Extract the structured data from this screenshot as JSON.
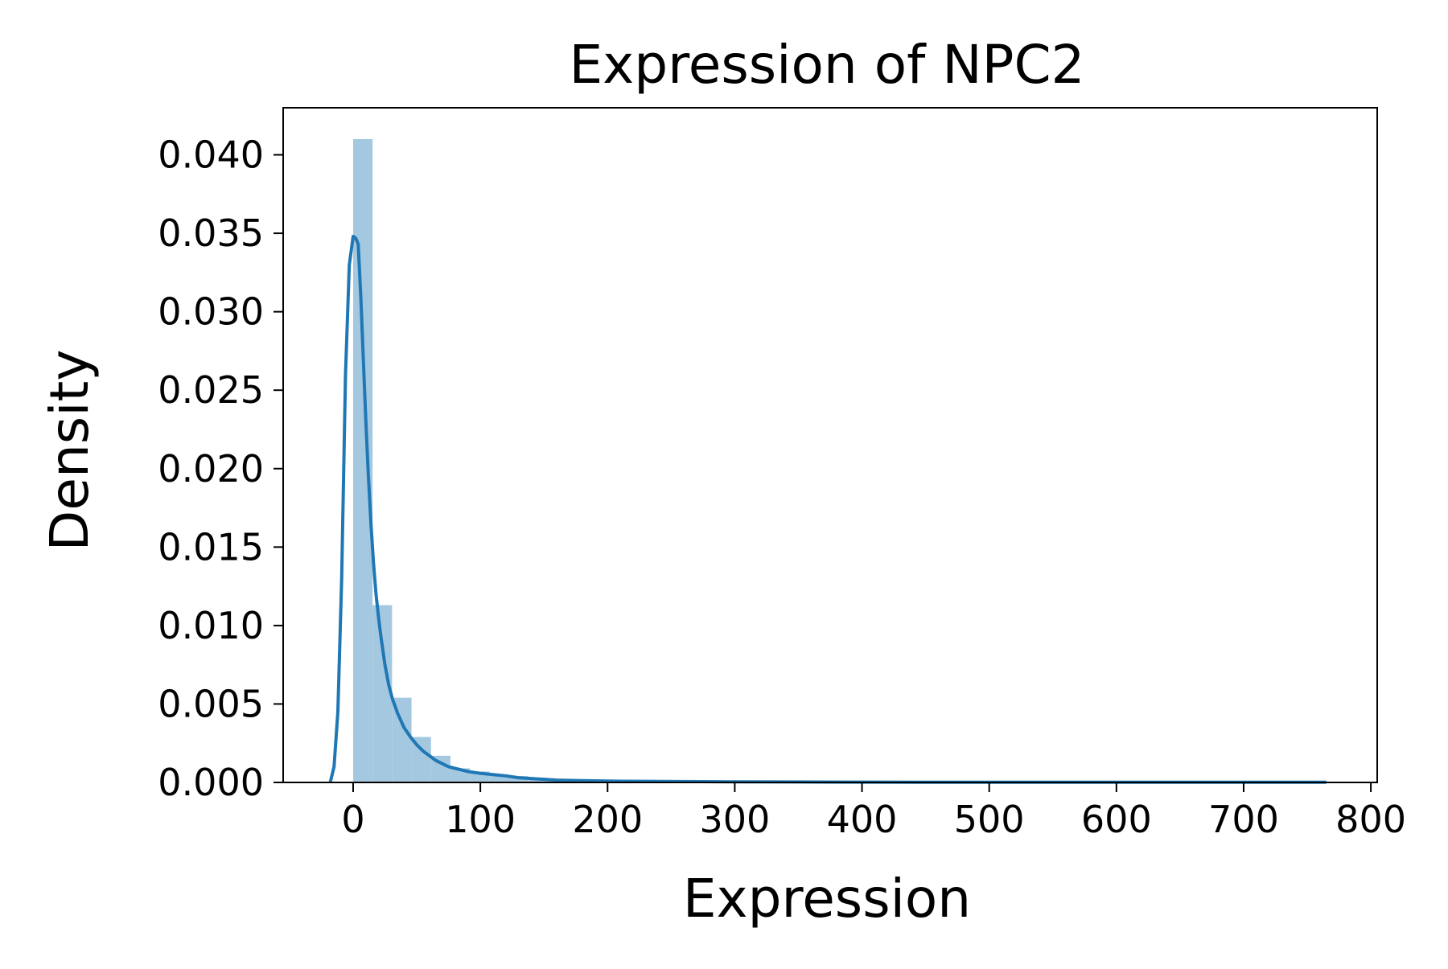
{
  "chart_data": {
    "type": "bar",
    "title": "Expression of NPC2",
    "xlabel": "Expression",
    "ylabel": "Density",
    "xlim": [
      -55,
      805
    ],
    "ylim": [
      0,
      0.043
    ],
    "xticks": [
      0,
      100,
      200,
      300,
      400,
      500,
      600,
      700,
      800
    ],
    "xtick_labels": [
      "0",
      "100",
      "200",
      "300",
      "400",
      "500",
      "600",
      "700",
      "800"
    ],
    "yticks": [
      0,
      0.005,
      0.01,
      0.015,
      0.02,
      0.025,
      0.03,
      0.035,
      0.04
    ],
    "ytick_labels": [
      "0.000",
      "0.005",
      "0.010",
      "0.015",
      "0.020",
      "0.025",
      "0.030",
      "0.035",
      "0.040"
    ],
    "grid": false,
    "legend": "none",
    "colors": {
      "histogram": "#a5c8e1",
      "kde": "#1f77b4",
      "axes": "#000000"
    },
    "histogram": {
      "bin_edges": [
        0,
        15.3,
        30.6,
        45.9,
        61.2,
        76.5,
        91.8,
        107.1,
        122.4,
        137.7,
        153,
        168.3,
        183.6,
        198.9,
        214.2,
        229.5,
        244.8,
        260.1,
        275.4,
        290.7,
        306,
        321.3,
        336.6,
        351.9,
        367.2,
        382.5,
        397.8,
        413.1,
        428.4,
        443.7,
        459,
        474.3,
        489.6,
        504.9,
        520.2,
        535.5,
        550.8,
        566.1,
        581.4,
        596.7,
        612,
        627.3,
        642.6,
        657.9,
        673.2,
        688.5,
        703.8,
        719.1,
        734.4,
        749.7,
        765
      ],
      "values": [
        0.041,
        0.0113,
        0.0054,
        0.0029,
        0.0017,
        0.0009,
        0.0007,
        0.0005,
        0.0004,
        0.0003,
        0.0002,
        0.0002,
        0.00015,
        0.0001,
        0.0001,
        0.0001,
        8e-05,
        6e-05,
        5e-05,
        4e-05,
        4e-05,
        3e-05,
        3e-05,
        2e-05,
        2e-05,
        2e-05,
        2e-05,
        1e-05,
        1e-05,
        1e-05,
        1e-05,
        1e-05,
        1e-05,
        1e-05,
        1e-05,
        1e-05,
        1e-05,
        1e-05,
        1e-05,
        1e-05,
        1e-05,
        1e-05,
        1e-05,
        1e-05,
        1e-05,
        1e-05,
        1e-05,
        1e-05,
        1e-05,
        1e-05
      ]
    },
    "kde": {
      "x": [
        -18,
        -15,
        -12,
        -9,
        -6,
        -3,
        0,
        2,
        4,
        6,
        8,
        10,
        12,
        14,
        16,
        18,
        20,
        22,
        25,
        28,
        31,
        35,
        40,
        45,
        50,
        55,
        60,
        65,
        70,
        75,
        80,
        90,
        100,
        110,
        120,
        130,
        140,
        150,
        160,
        175,
        190,
        210,
        230,
        260,
        300,
        350,
        400,
        500,
        600,
        700,
        765
      ],
      "y": [
        0.0,
        0.001,
        0.0045,
        0.013,
        0.026,
        0.033,
        0.0348,
        0.0347,
        0.0343,
        0.031,
        0.027,
        0.023,
        0.0195,
        0.0165,
        0.014,
        0.012,
        0.0105,
        0.0092,
        0.0075,
        0.0062,
        0.0053,
        0.0044,
        0.0035,
        0.0029,
        0.0024,
        0.002,
        0.0017,
        0.0014,
        0.0012,
        0.001,
        0.0009,
        0.0007,
        0.00058,
        0.0005,
        0.00042,
        0.0003,
        0.00025,
        0.0002,
        0.00015,
        0.00012,
        0.0001,
        8e-05,
        7e-05,
        6e-05,
        4e-05,
        3e-05,
        2e-05,
        1e-05,
        1e-05,
        1e-05,
        1e-05
      ]
    }
  }
}
